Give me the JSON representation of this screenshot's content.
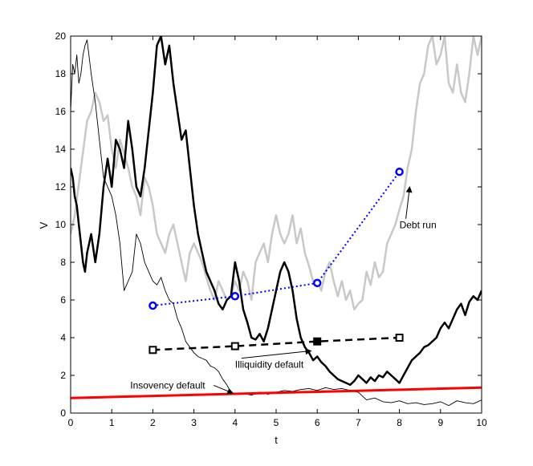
{
  "chart_data": {
    "type": "line",
    "title": "",
    "xlabel": "t",
    "ylabel": "V",
    "xlim": [
      0,
      10
    ],
    "ylim": [
      0,
      20
    ],
    "xticks": [
      0,
      1,
      2,
      3,
      4,
      5,
      6,
      7,
      8,
      9,
      10
    ],
    "yticks": [
      0,
      2,
      4,
      6,
      8,
      10,
      12,
      14,
      16,
      18,
      20
    ],
    "grid": false,
    "series": [
      {
        "color": "#c8c8c8",
        "width": 2.5,
        "style": "solid",
        "x": [
          0,
          0.1,
          0.25,
          0.4,
          0.5,
          0.6,
          0.7,
          0.8,
          0.9,
          1.0,
          1.1,
          1.2,
          1.3,
          1.4,
          1.5,
          1.6,
          1.7,
          1.8,
          1.9,
          2.0,
          2.1,
          2.2,
          2.3,
          2.4,
          2.5,
          2.6,
          2.7,
          2.8,
          2.9,
          3.0,
          3.1,
          3.2,
          3.3,
          3.4,
          3.5,
          3.6,
          3.7,
          3.8,
          3.9,
          4.0,
          4.1,
          4.2,
          4.3,
          4.4,
          4.5,
          4.6,
          4.7,
          4.8,
          4.9,
          5.0,
          5.1,
          5.2,
          5.3,
          5.4,
          5.5,
          5.6,
          5.7,
          5.8,
          5.9,
          6.0,
          6.1,
          6.2,
          6.3,
          6.4,
          6.5,
          6.6,
          6.7,
          6.8,
          6.9,
          7.0,
          7.1,
          7.2,
          7.3,
          7.4,
          7.5,
          7.6,
          7.7,
          7.8,
          7.9,
          8.0,
          8.1,
          8.2,
          8.3,
          8.4,
          8.5,
          8.6,
          8.7,
          8.8,
          8.9,
          9.0,
          9.1,
          9.2,
          9.3,
          9.4,
          9.5,
          9.6,
          9.7,
          9.8,
          9.9,
          10.0
        ],
        "y": [
          9.5,
          10.5,
          13.0,
          15.5,
          16.0,
          17.0,
          16.5,
          15.5,
          15.8,
          14.0,
          13.0,
          14.5,
          13.8,
          13.0,
          12.0,
          11.5,
          10.5,
          12.5,
          12.0,
          11.0,
          9.5,
          9.0,
          8.5,
          9.5,
          10.0,
          9.0,
          8.0,
          7.0,
          8.5,
          9.0,
          8.5,
          8.0,
          7.2,
          6.5,
          6.0,
          7.0,
          6.5,
          6.0,
          6.2,
          7.0,
          6.5,
          7.5,
          7.0,
          6.0,
          8.0,
          8.5,
          9.0,
          8.0,
          9.5,
          10.5,
          9.5,
          9.0,
          9.5,
          10.5,
          9.0,
          9.8,
          8.5,
          7.8,
          7.0,
          7.0,
          6.5,
          7.5,
          8.0,
          7.0,
          6.2,
          7.0,
          6.0,
          6.5,
          5.5,
          5.8,
          6.0,
          7.5,
          6.8,
          8.0,
          7.2,
          7.5,
          9.0,
          9.5,
          10.0,
          10.8,
          11.5,
          13.0,
          14.0,
          16.0,
          17.5,
          18.0,
          19.5,
          20.0,
          18.5,
          19.0,
          20.0,
          17.5,
          17.0,
          18.5,
          17.0,
          16.5,
          18.0,
          20.0,
          19.0,
          20.0
        ]
      },
      {
        "color": "#000000",
        "width": 2.5,
        "style": "solid",
        "x": [
          0,
          0.05,
          0.1,
          0.15,
          0.2,
          0.3,
          0.35,
          0.4,
          0.5,
          0.6,
          0.7,
          0.8,
          0.9,
          1.0,
          1.1,
          1.2,
          1.3,
          1.4,
          1.5,
          1.6,
          1.7,
          1.8,
          1.9,
          2.0,
          2.1,
          2.2,
          2.3,
          2.4,
          2.5,
          2.6,
          2.7,
          2.8,
          2.9,
          3.0,
          3.1,
          3.2,
          3.3,
          3.4,
          3.5,
          3.6,
          3.7,
          3.8,
          3.9,
          4.0,
          4.1,
          4.2,
          4.3,
          4.4,
          4.5,
          4.6,
          4.7,
          4.8,
          4.9,
          5.0,
          5.1,
          5.2,
          5.3,
          5.4,
          5.5,
          5.6,
          5.7,
          5.8,
          5.9,
          6.0,
          6.1,
          6.2,
          6.3,
          6.4,
          6.5,
          6.6,
          6.7,
          6.8,
          6.9,
          7.0,
          7.1,
          7.2,
          7.3,
          7.4,
          7.5,
          7.6,
          7.7,
          7.8,
          7.9,
          8.0,
          8.1,
          8.2,
          8.3,
          8.4,
          8.5,
          8.6,
          8.7,
          8.8,
          8.9,
          9.0,
          9.1,
          9.2,
          9.3,
          9.4,
          9.5,
          9.6,
          9.7,
          9.8,
          9.9,
          10.0
        ],
        "y": [
          13.0,
          12.5,
          11.5,
          11.0,
          10.0,
          8.0,
          7.5,
          8.5,
          9.5,
          8.0,
          9.5,
          12.0,
          13.5,
          12.0,
          14.5,
          14.0,
          13.0,
          15.5,
          14.0,
          12.0,
          11.5,
          13.0,
          15.0,
          17.0,
          19.5,
          20.0,
          18.5,
          19.5,
          17.5,
          16.0,
          14.5,
          15.0,
          13.0,
          11.0,
          9.5,
          8.5,
          7.5,
          7.0,
          6.5,
          5.8,
          5.5,
          6.0,
          6.2,
          8.0,
          7.0,
          5.5,
          4.8,
          4.0,
          3.9,
          4.2,
          3.8,
          4.5,
          5.5,
          6.5,
          7.5,
          8.0,
          7.5,
          6.5,
          5.0,
          4.0,
          3.5,
          3.2,
          2.8,
          3.0,
          2.7,
          2.5,
          2.2,
          2.0,
          1.8,
          1.7,
          1.6,
          1.5,
          1.7,
          2.0,
          1.8,
          1.6,
          1.9,
          1.7,
          2.0,
          1.9,
          2.2,
          2.0,
          1.8,
          1.6,
          2.0,
          2.4,
          2.8,
          3.0,
          3.2,
          3.5,
          3.6,
          3.8,
          4.0,
          4.5,
          4.8,
          4.5,
          5.0,
          5.5,
          5.8,
          5.2,
          5.9,
          6.2,
          6.0,
          6.5
        ]
      },
      {
        "color": "#000000",
        "width": 0.9,
        "style": "solid",
        "x": [
          0,
          0.05,
          0.1,
          0.15,
          0.2,
          0.25,
          0.3,
          0.35,
          0.4,
          0.5,
          0.6,
          0.7,
          0.8,
          0.9,
          1.0,
          1.1,
          1.2,
          1.3,
          1.4,
          1.5,
          1.6,
          1.7,
          1.8,
          1.9,
          2.0,
          2.1,
          2.2,
          2.3,
          2.4,
          2.5,
          2.6,
          2.7,
          2.8,
          2.9,
          3.0,
          3.1,
          3.2,
          3.3,
          3.4,
          3.5,
          3.6,
          3.7,
          3.8,
          3.9,
          4.0,
          4.2,
          4.4,
          4.6,
          4.8,
          5.0,
          5.2,
          5.4,
          5.6,
          5.8,
          6.0,
          6.2,
          6.4,
          6.6,
          6.8,
          7.0,
          7.2,
          7.4,
          7.6,
          7.8,
          8.0,
          8.2,
          8.4,
          8.6,
          8.8,
          9.0,
          9.2,
          9.4,
          9.6,
          9.8,
          10.0
        ],
        "y": [
          16.0,
          18.5,
          18.0,
          19.0,
          17.5,
          18.0,
          19.0,
          19.5,
          19.8,
          18.0,
          16.5,
          14.5,
          12.5,
          12.0,
          11.5,
          10.5,
          9.0,
          6.5,
          7.0,
          7.5,
          9.5,
          9.0,
          8.0,
          7.5,
          7.0,
          6.8,
          7.2,
          6.5,
          6.0,
          5.8,
          5.0,
          4.5,
          3.8,
          3.5,
          3.2,
          3.0,
          2.9,
          2.8,
          2.5,
          2.4,
          2.2,
          1.8,
          1.5,
          1.1,
          1.0,
          1.05,
          0.95,
          1.1,
          1.0,
          1.1,
          1.2,
          1.15,
          1.25,
          1.3,
          1.2,
          1.35,
          1.25,
          1.3,
          1.2,
          1.1,
          0.7,
          0.8,
          0.6,
          0.55,
          0.65,
          0.5,
          0.55,
          0.45,
          0.5,
          0.6,
          0.4,
          0.65,
          0.55,
          0.5,
          0.7
        ]
      },
      {
        "color": "#ff0000",
        "width": 3,
        "style": "solid",
        "x": [
          0,
          10
        ],
        "y": [
          0.8,
          1.35
        ]
      },
      {
        "color": "#0000ff",
        "width": 2,
        "style": "dotted",
        "marker": "circle",
        "x": [
          2,
          4,
          6,
          8
        ],
        "y": [
          5.7,
          6.2,
          6.9,
          12.8
        ]
      },
      {
        "color": "#000000",
        "width": 2.5,
        "style": "dashed",
        "marker": "square",
        "x": [
          2,
          4,
          6,
          8
        ],
        "y": [
          3.35,
          3.55,
          3.8,
          4.0
        ],
        "filled_marker_index": 2
      }
    ],
    "annotations": [
      {
        "text": "Debt run",
        "x": 8.0,
        "y": 9.8,
        "arrow_to": [
          8.25,
          12.0
        ]
      },
      {
        "text": "Illiquidity default",
        "x": 4.0,
        "y": 2.4,
        "arrow_to": [
          5.85,
          3.3
        ]
      },
      {
        "text": "Insovency default",
        "x": 1.45,
        "y": 1.3,
        "arrow_to": [
          3.95,
          1.05
        ]
      }
    ]
  }
}
